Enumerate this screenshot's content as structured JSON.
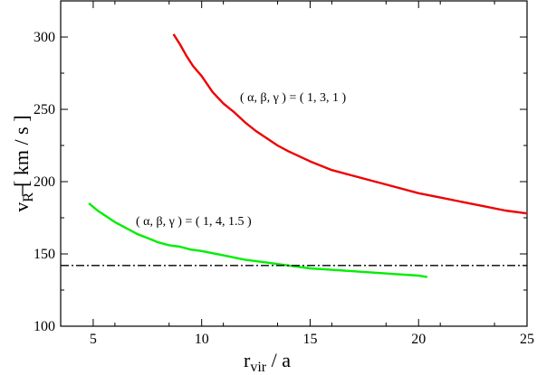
{
  "chart_data": {
    "type": "line",
    "xlabel": {
      "main": "r",
      "sub": "vir",
      "rest": " / a"
    },
    "ylabel": {
      "bar_symbol": "v",
      "sub": "R",
      "rest": "[ km / s ]"
    },
    "xlim": [
      3.5,
      25
    ],
    "ylim": [
      100,
      325
    ],
    "xticks": [
      5,
      10,
      15,
      20,
      25
    ],
    "yticks": [
      100,
      150,
      200,
      250,
      300
    ],
    "grid": false,
    "series": [
      {
        "annotation": "( α, β, γ ) = ( 1, 3, 1 )",
        "color": "#ee0000",
        "x": [
          8.7,
          9.0,
          9.3,
          9.6,
          10.0,
          10.5,
          11.0,
          11.5,
          12.0,
          12.5,
          13.0,
          13.5,
          14.0,
          15.0,
          16.0,
          17.0,
          18.0,
          19.0,
          20.0,
          21.0,
          22.0,
          23.0,
          24.0,
          25.0
        ],
        "y": [
          302,
          295,
          287,
          280,
          273,
          262,
          254,
          248,
          241,
          235,
          230,
          225,
          221,
          214,
          208,
          204,
          200,
          196,
          192,
          189,
          186,
          183,
          180,
          178
        ]
      },
      {
        "annotation": "( α, β, γ ) = ( 1, 4, 1.5 )",
        "color": "#00ee00",
        "x": [
          4.8,
          5.2,
          5.6,
          6.0,
          6.5,
          7.0,
          7.5,
          8.0,
          8.5,
          9.0,
          9.5,
          10.0,
          11.0,
          12.0,
          13.0,
          14.0,
          15.0,
          16.0,
          17.0,
          18.0,
          19.0,
          20.0,
          20.4
        ],
        "y": [
          185,
          180,
          176,
          172,
          168,
          164,
          161,
          158,
          156,
          155,
          153,
          152,
          149,
          146,
          144,
          142,
          140,
          139,
          138,
          137,
          136,
          135,
          134
        ]
      }
    ],
    "reference_line": {
      "y": 142,
      "style": "dash-dot",
      "color": "#000000"
    }
  }
}
